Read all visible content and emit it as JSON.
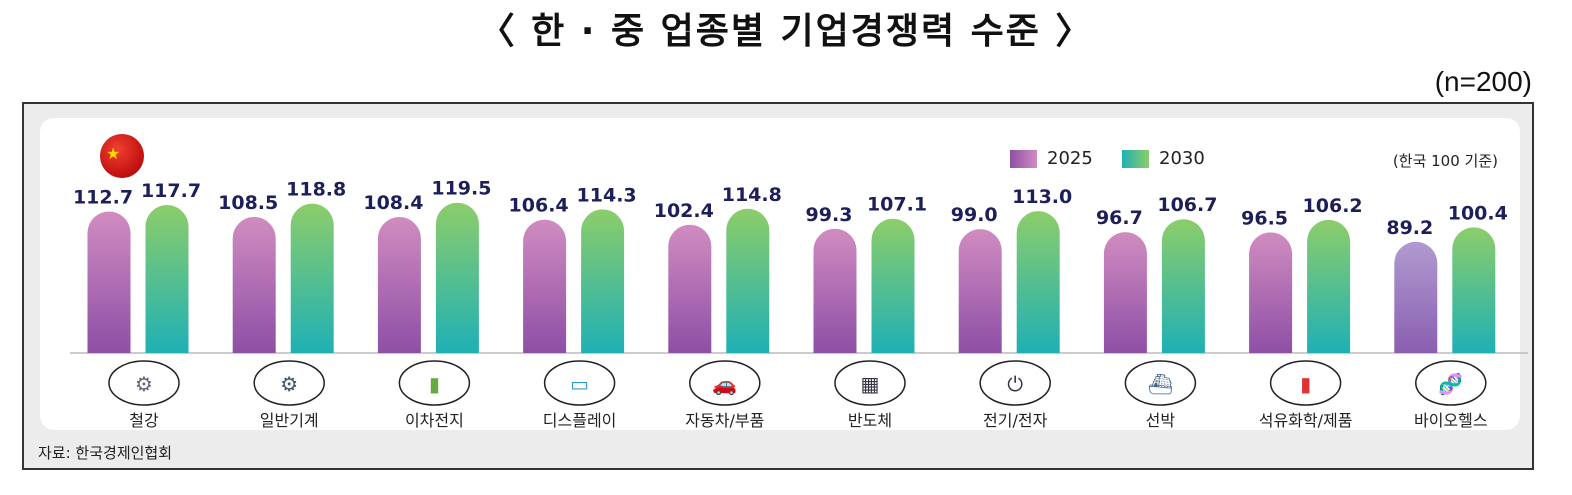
{
  "title": "〈 한 · 중 업종별 기업경쟁력 수준 〉",
  "sample": "(n=200)",
  "source": "자료: 한국경제인협회",
  "chart_data": {
    "type": "bar",
    "title": "〈 한 · 중 업종별 기업경쟁력 수준 〉",
    "unit_note": "(한국 100 기준)",
    "categories": [
      "철강",
      "일반기계",
      "이차전지",
      "디스플레이",
      "자동차/부품",
      "반도체",
      "전기/전자",
      "선박",
      "석유화학/제품",
      "바이오헬스"
    ],
    "category_icons": [
      "steel-grinder-icon",
      "gears-icon",
      "battery-icon",
      "display-devices-icon",
      "car-icon",
      "chip-icon",
      "plug-icon",
      "ship-icon",
      "fuel-can-icon",
      "dna-icon"
    ],
    "series": [
      {
        "name": "2025",
        "values": [
          112.7,
          108.5,
          108.4,
          106.4,
          102.4,
          99.3,
          99.0,
          96.7,
          96.5,
          89.2
        ],
        "colors": [
          "#8e4fa6",
          "#d08cc0"
        ]
      },
      {
        "name": "2030",
        "values": [
          117.7,
          118.8,
          119.5,
          114.3,
          114.8,
          107.1,
          113.0,
          106.7,
          106.2,
          100.4
        ],
        "colors": [
          "#1fb0b5",
          "#8ccd6a"
        ]
      }
    ],
    "value_labels": [
      "112.7",
      "117.7",
      "108.5",
      "118.8",
      "108.4",
      "119.5",
      "106.4",
      "114.3",
      "102.4",
      "114.8",
      "99.3",
      "107.1",
      "99.0",
      "113.0",
      "96.7",
      "106.7",
      "96.5",
      "106.2",
      "89.2",
      "100.4"
    ],
    "legend": "top-right",
    "grid": false
  }
}
